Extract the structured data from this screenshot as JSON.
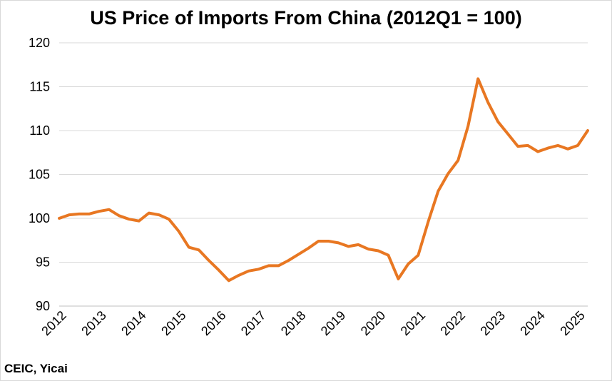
{
  "chart_data": {
    "type": "line",
    "title": "US Price of Imports From China (2012Q1 = 100)",
    "source": "CEIC, Yicai",
    "xlabel": "",
    "ylabel": "",
    "ylim": [
      90,
      120
    ],
    "yticks": [
      90,
      95,
      100,
      105,
      110,
      115,
      120
    ],
    "xticks": [
      "2012",
      "2013",
      "2014",
      "2015",
      "2016",
      "2017",
      "2018",
      "2019",
      "2020",
      "2021",
      "2022",
      "2023",
      "2024",
      "2025"
    ],
    "grid": "horizontal",
    "line_color": "#E87722",
    "series": [
      {
        "values": [
          100.0,
          100.4,
          100.5,
          100.5,
          100.8,
          101.0,
          100.3,
          99.9,
          99.7,
          100.6,
          100.4,
          99.9,
          98.5,
          96.7,
          96.4,
          95.2,
          94.1,
          92.9,
          93.5,
          94.0,
          94.2,
          94.6,
          94.6,
          95.2,
          95.9,
          96.6,
          97.4,
          97.4,
          97.2,
          96.8,
          97.0,
          96.5,
          96.3,
          95.8,
          93.1,
          94.8,
          95.8,
          99.6,
          103.1,
          105.1,
          106.6,
          110.5,
          115.9,
          113.2,
          111.0,
          109.6,
          108.2,
          108.3,
          107.6,
          108.0,
          108.3,
          107.9,
          108.3,
          110.0
        ]
      }
    ]
  }
}
